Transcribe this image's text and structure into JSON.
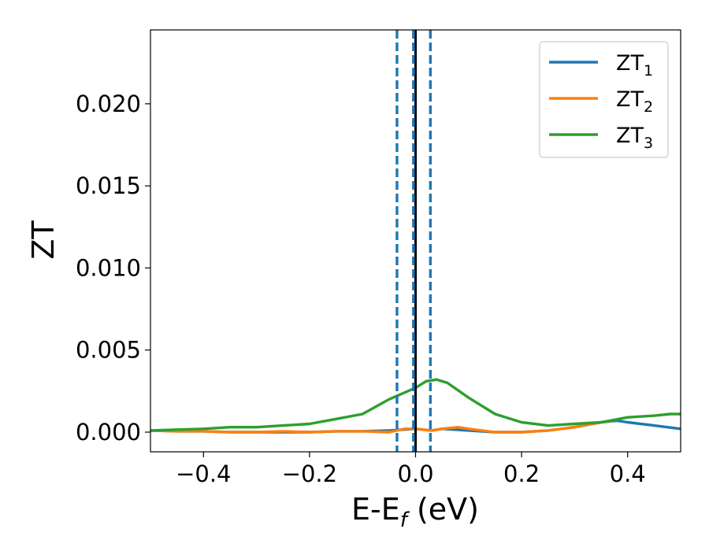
{
  "chart_data": {
    "type": "line",
    "xlabel": {
      "main": "E-E",
      "sub": "f",
      "rest": " (eV)"
    },
    "ylabel": "ZT",
    "xlim": [
      -0.5,
      0.5
    ],
    "ylim": [
      -0.0012,
      0.0245
    ],
    "xticks": [
      -0.4,
      -0.2,
      0.0,
      0.2,
      0.4
    ],
    "xtick_labels": [
      "−0.4",
      "−0.2",
      "0.0",
      "0.2",
      "0.4"
    ],
    "yticks": [
      0.0,
      0.005,
      0.01,
      0.015,
      0.02
    ],
    "ytick_labels": [
      "0.000",
      "0.005",
      "0.010",
      "0.015",
      "0.020"
    ],
    "legend_position": "top-right",
    "grid": false,
    "vlines": [
      {
        "x": 0.0,
        "color": "#000000",
        "style": "solid"
      },
      {
        "x": -0.035,
        "color": "#1f77b4",
        "style": "dashed"
      },
      {
        "x": -0.004,
        "color": "#1f77b4",
        "style": "dashed"
      },
      {
        "x": 0.028,
        "color": "#1f77b4",
        "style": "dashed"
      }
    ],
    "series": [
      {
        "name": "ZT",
        "name_sub": "1",
        "color": "#1f77b4",
        "x": [
          -0.5,
          -0.45,
          -0.4,
          -0.35,
          -0.3,
          -0.25,
          -0.2,
          -0.15,
          -0.1,
          -0.05,
          0.0,
          0.03,
          0.05,
          0.1,
          0.15,
          0.2,
          0.25,
          0.3,
          0.35,
          0.38,
          0.4,
          0.45,
          0.5
        ],
        "y": [
          0.0001,
          5e-05,
          5e-05,
          0.0,
          0.0,
          0.0,
          0.0,
          5e-05,
          5e-05,
          0.0001,
          0.0002,
          0.0001,
          0.0002,
          0.0001,
          0.0,
          0.0,
          0.0001,
          0.0003,
          0.0006,
          0.0007,
          0.0006,
          0.0004,
          0.0002
        ]
      },
      {
        "name": "ZT",
        "name_sub": "2",
        "color": "#ff7f0e",
        "x": [
          -0.5,
          -0.45,
          -0.4,
          -0.35,
          -0.3,
          -0.25,
          -0.2,
          -0.15,
          -0.1,
          -0.05,
          -0.02,
          0.0,
          0.03,
          0.05,
          0.08,
          0.1,
          0.15,
          0.2,
          0.25,
          0.3,
          0.35,
          0.37
        ],
        "y": [
          0.0001,
          5e-05,
          5e-05,
          0.0,
          0.0,
          5e-05,
          0.0,
          5e-05,
          5e-05,
          0.0,
          0.0002,
          0.0002,
          0.0001,
          0.0002,
          0.0003,
          0.0002,
          0.0,
          0.0,
          0.0001,
          0.0003,
          0.0006,
          0.0007
        ]
      },
      {
        "name": "ZT",
        "name_sub": "3",
        "color": "#2ca02c",
        "x": [
          -0.5,
          -0.45,
          -0.4,
          -0.35,
          -0.3,
          -0.25,
          -0.2,
          -0.15,
          -0.1,
          -0.05,
          0.0,
          0.02,
          0.04,
          0.06,
          0.1,
          0.15,
          0.2,
          0.25,
          0.3,
          0.35,
          0.4,
          0.45,
          0.48,
          0.5
        ],
        "y": [
          0.0001,
          0.00015,
          0.0002,
          0.0003,
          0.0003,
          0.0004,
          0.0005,
          0.0008,
          0.0011,
          0.002,
          0.0027,
          0.0031,
          0.0032,
          0.003,
          0.0021,
          0.0011,
          0.0006,
          0.0004,
          0.0005,
          0.0006,
          0.0009,
          0.001,
          0.0011,
          0.0011
        ]
      }
    ]
  }
}
